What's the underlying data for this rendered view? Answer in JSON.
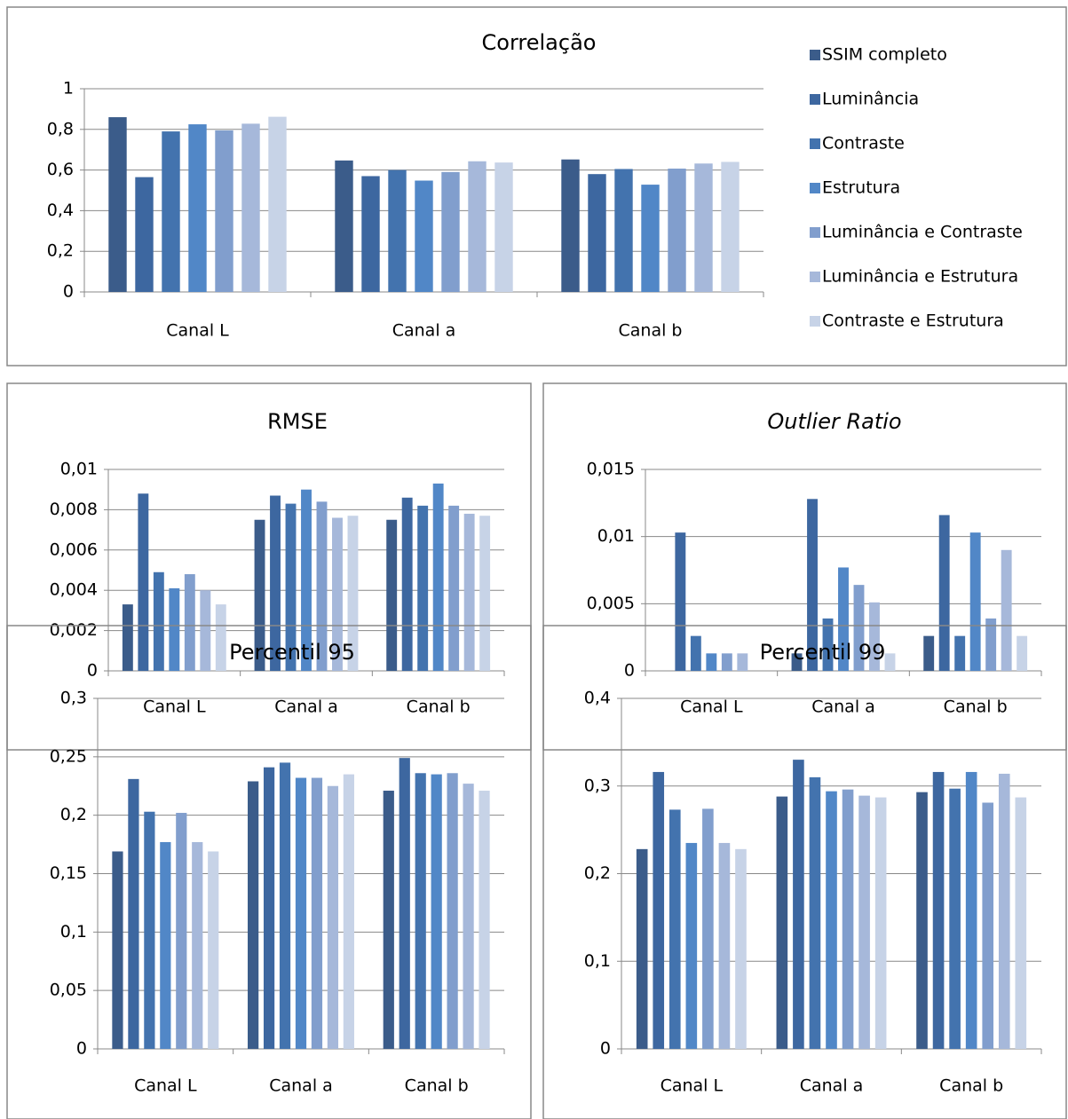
{
  "chart_data": [
    {
      "type": "bar",
      "title": "Correlação",
      "categories": [
        "Canal L",
        "Canal a",
        "Canal b"
      ],
      "grid": true,
      "legend": "right",
      "ylim": [
        0,
        1
      ],
      "yticks": [
        0,
        {
          "value": 0.2,
          "label": "0,2"
        },
        {
          "value": 0.4,
          "label": "0,4"
        },
        {
          "value": 0.6,
          "label": "0,6"
        },
        {
          "value": 0.8,
          "label": "0,8"
        },
        1
      ],
      "series": [
        {
          "name": "SSIM completo",
          "color": "#3b5c8a",
          "values": [
            0.86,
            0.647,
            0.652
          ]
        },
        {
          "name": "Luminância",
          "color": "#3d67a0",
          "values": [
            0.565,
            0.57,
            0.58
          ]
        },
        {
          "name": "Contraste",
          "color": "#4373ae",
          "values": [
            0.79,
            0.6,
            0.605
          ]
        },
        {
          "name": "Estrutura",
          "color": "#5187c7",
          "values": [
            0.825,
            0.548,
            0.528
          ]
        },
        {
          "name": "Luminância e Contraste",
          "color": "#819ecd",
          "values": [
            0.795,
            0.59,
            0.607
          ]
        },
        {
          "name": "Luminância e Estrutura",
          "color": "#a6b8da",
          "values": [
            0.828,
            0.643,
            0.632
          ]
        },
        {
          "name": "Contraste e Estrutura",
          "color": "#c7d3e7",
          "values": [
            0.862,
            0.637,
            0.64
          ]
        }
      ]
    },
    {
      "type": "bar",
      "title": "RMSE",
      "categories": [
        "Canal L",
        "Canal a",
        "Canal b"
      ],
      "grid": true,
      "ylim": [
        0,
        0.01
      ],
      "yticks": [
        0,
        {
          "value": 0.002,
          "label": "0,002"
        },
        {
          "value": 0.004,
          "label": "0,004"
        },
        {
          "value": 0.006,
          "label": "0,006"
        },
        {
          "value": 0.008,
          "label": "0,008"
        },
        {
          "value": 0.01,
          "label": "0,01"
        }
      ],
      "series": [
        {
          "color": "#3b5c8a",
          "values": [
            0.0033,
            0.0075,
            0.0075
          ]
        },
        {
          "color": "#3d67a0",
          "values": [
            0.0088,
            0.0087,
            0.0086
          ]
        },
        {
          "color": "#4373ae",
          "values": [
            0.0049,
            0.0083,
            0.0082
          ]
        },
        {
          "color": "#5187c7",
          "values": [
            0.0041,
            0.009,
            0.0093
          ]
        },
        {
          "color": "#819ecd",
          "values": [
            0.0048,
            0.0084,
            0.0082
          ]
        },
        {
          "color": "#a6b8da",
          "values": [
            0.004,
            0.0076,
            0.0078
          ]
        },
        {
          "color": "#c7d3e7",
          "values": [
            0.0033,
            0.0077,
            0.0077
          ]
        }
      ]
    },
    {
      "type": "bar",
      "title": "Outlier Ratio",
      "title_italic": true,
      "categories": [
        "Canal L",
        "Canal a",
        "Canal b"
      ],
      "grid": true,
      "ylim": [
        0,
        0.015
      ],
      "yticks": [
        0,
        {
          "value": 0.005,
          "label": "0,005"
        },
        {
          "value": 0.01,
          "label": "0,01"
        },
        {
          "value": 0.015,
          "label": "0,015"
        }
      ],
      "series": [
        {
          "color": "#3b5c8a",
          "values": [
            0,
            0.0013,
            0.0026
          ]
        },
        {
          "color": "#3d67a0",
          "values": [
            0.0103,
            0.0128,
            0.0116
          ]
        },
        {
          "color": "#4373ae",
          "values": [
            0.0026,
            0.0039,
            0.0026
          ]
        },
        {
          "color": "#5187c7",
          "values": [
            0.0013,
            0.0077,
            0.0103
          ]
        },
        {
          "color": "#819ecd",
          "values": [
            0.0013,
            0.0064,
            0.0039
          ]
        },
        {
          "color": "#a6b8da",
          "values": [
            0.0013,
            0.0051,
            0.009
          ]
        },
        {
          "color": "#c7d3e7",
          "values": [
            0,
            0.0013,
            0.0026
          ]
        }
      ]
    },
    {
      "type": "bar",
      "title": "Percentil 95",
      "categories": [
        "Canal L",
        "Canal a",
        "Canal b"
      ],
      "grid": true,
      "ylim": [
        0,
        0.3
      ],
      "yticks": [
        0,
        {
          "value": 0.05,
          "label": "0,05"
        },
        {
          "value": 0.1,
          "label": "0,1"
        },
        {
          "value": 0.15,
          "label": "0,15"
        },
        {
          "value": 0.2,
          "label": "0,2"
        },
        {
          "value": 0.25,
          "label": "0,25"
        },
        {
          "value": 0.3,
          "label": "0,3"
        }
      ],
      "series": [
        {
          "color": "#3b5c8a",
          "values": [
            0.169,
            0.229,
            0.221
          ]
        },
        {
          "color": "#3d67a0",
          "values": [
            0.231,
            0.241,
            0.249
          ]
        },
        {
          "color": "#4373ae",
          "values": [
            0.203,
            0.245,
            0.236
          ]
        },
        {
          "color": "#5187c7",
          "values": [
            0.177,
            0.232,
            0.235
          ]
        },
        {
          "color": "#819ecd",
          "values": [
            0.202,
            0.232,
            0.236
          ]
        },
        {
          "color": "#a6b8da",
          "values": [
            0.177,
            0.225,
            0.227
          ]
        },
        {
          "color": "#c7d3e7",
          "values": [
            0.169,
            0.235,
            0.221
          ]
        }
      ]
    },
    {
      "type": "bar",
      "title": "Percentil 99",
      "categories": [
        "Canal L",
        "Canal a",
        "Canal b"
      ],
      "grid": true,
      "ylim": [
        0,
        0.4
      ],
      "yticks": [
        0,
        {
          "value": 0.1,
          "label": "0,1"
        },
        {
          "value": 0.2,
          "label": "0,2"
        },
        {
          "value": 0.3,
          "label": "0,3"
        },
        {
          "value": 0.4,
          "label": "0,4"
        }
      ],
      "series": [
        {
          "color": "#3b5c8a",
          "values": [
            0.228,
            0.288,
            0.293
          ]
        },
        {
          "color": "#3d67a0",
          "values": [
            0.316,
            0.33,
            0.316
          ]
        },
        {
          "color": "#4373ae",
          "values": [
            0.273,
            0.31,
            0.297
          ]
        },
        {
          "color": "#5187c7",
          "values": [
            0.235,
            0.294,
            0.316
          ]
        },
        {
          "color": "#819ecd",
          "values": [
            0.274,
            0.296,
            0.281
          ]
        },
        {
          "color": "#a6b8da",
          "values": [
            0.235,
            0.289,
            0.314
          ]
        },
        {
          "color": "#c7d3e7",
          "values": [
            0.228,
            0.287,
            0.287
          ]
        }
      ]
    }
  ]
}
